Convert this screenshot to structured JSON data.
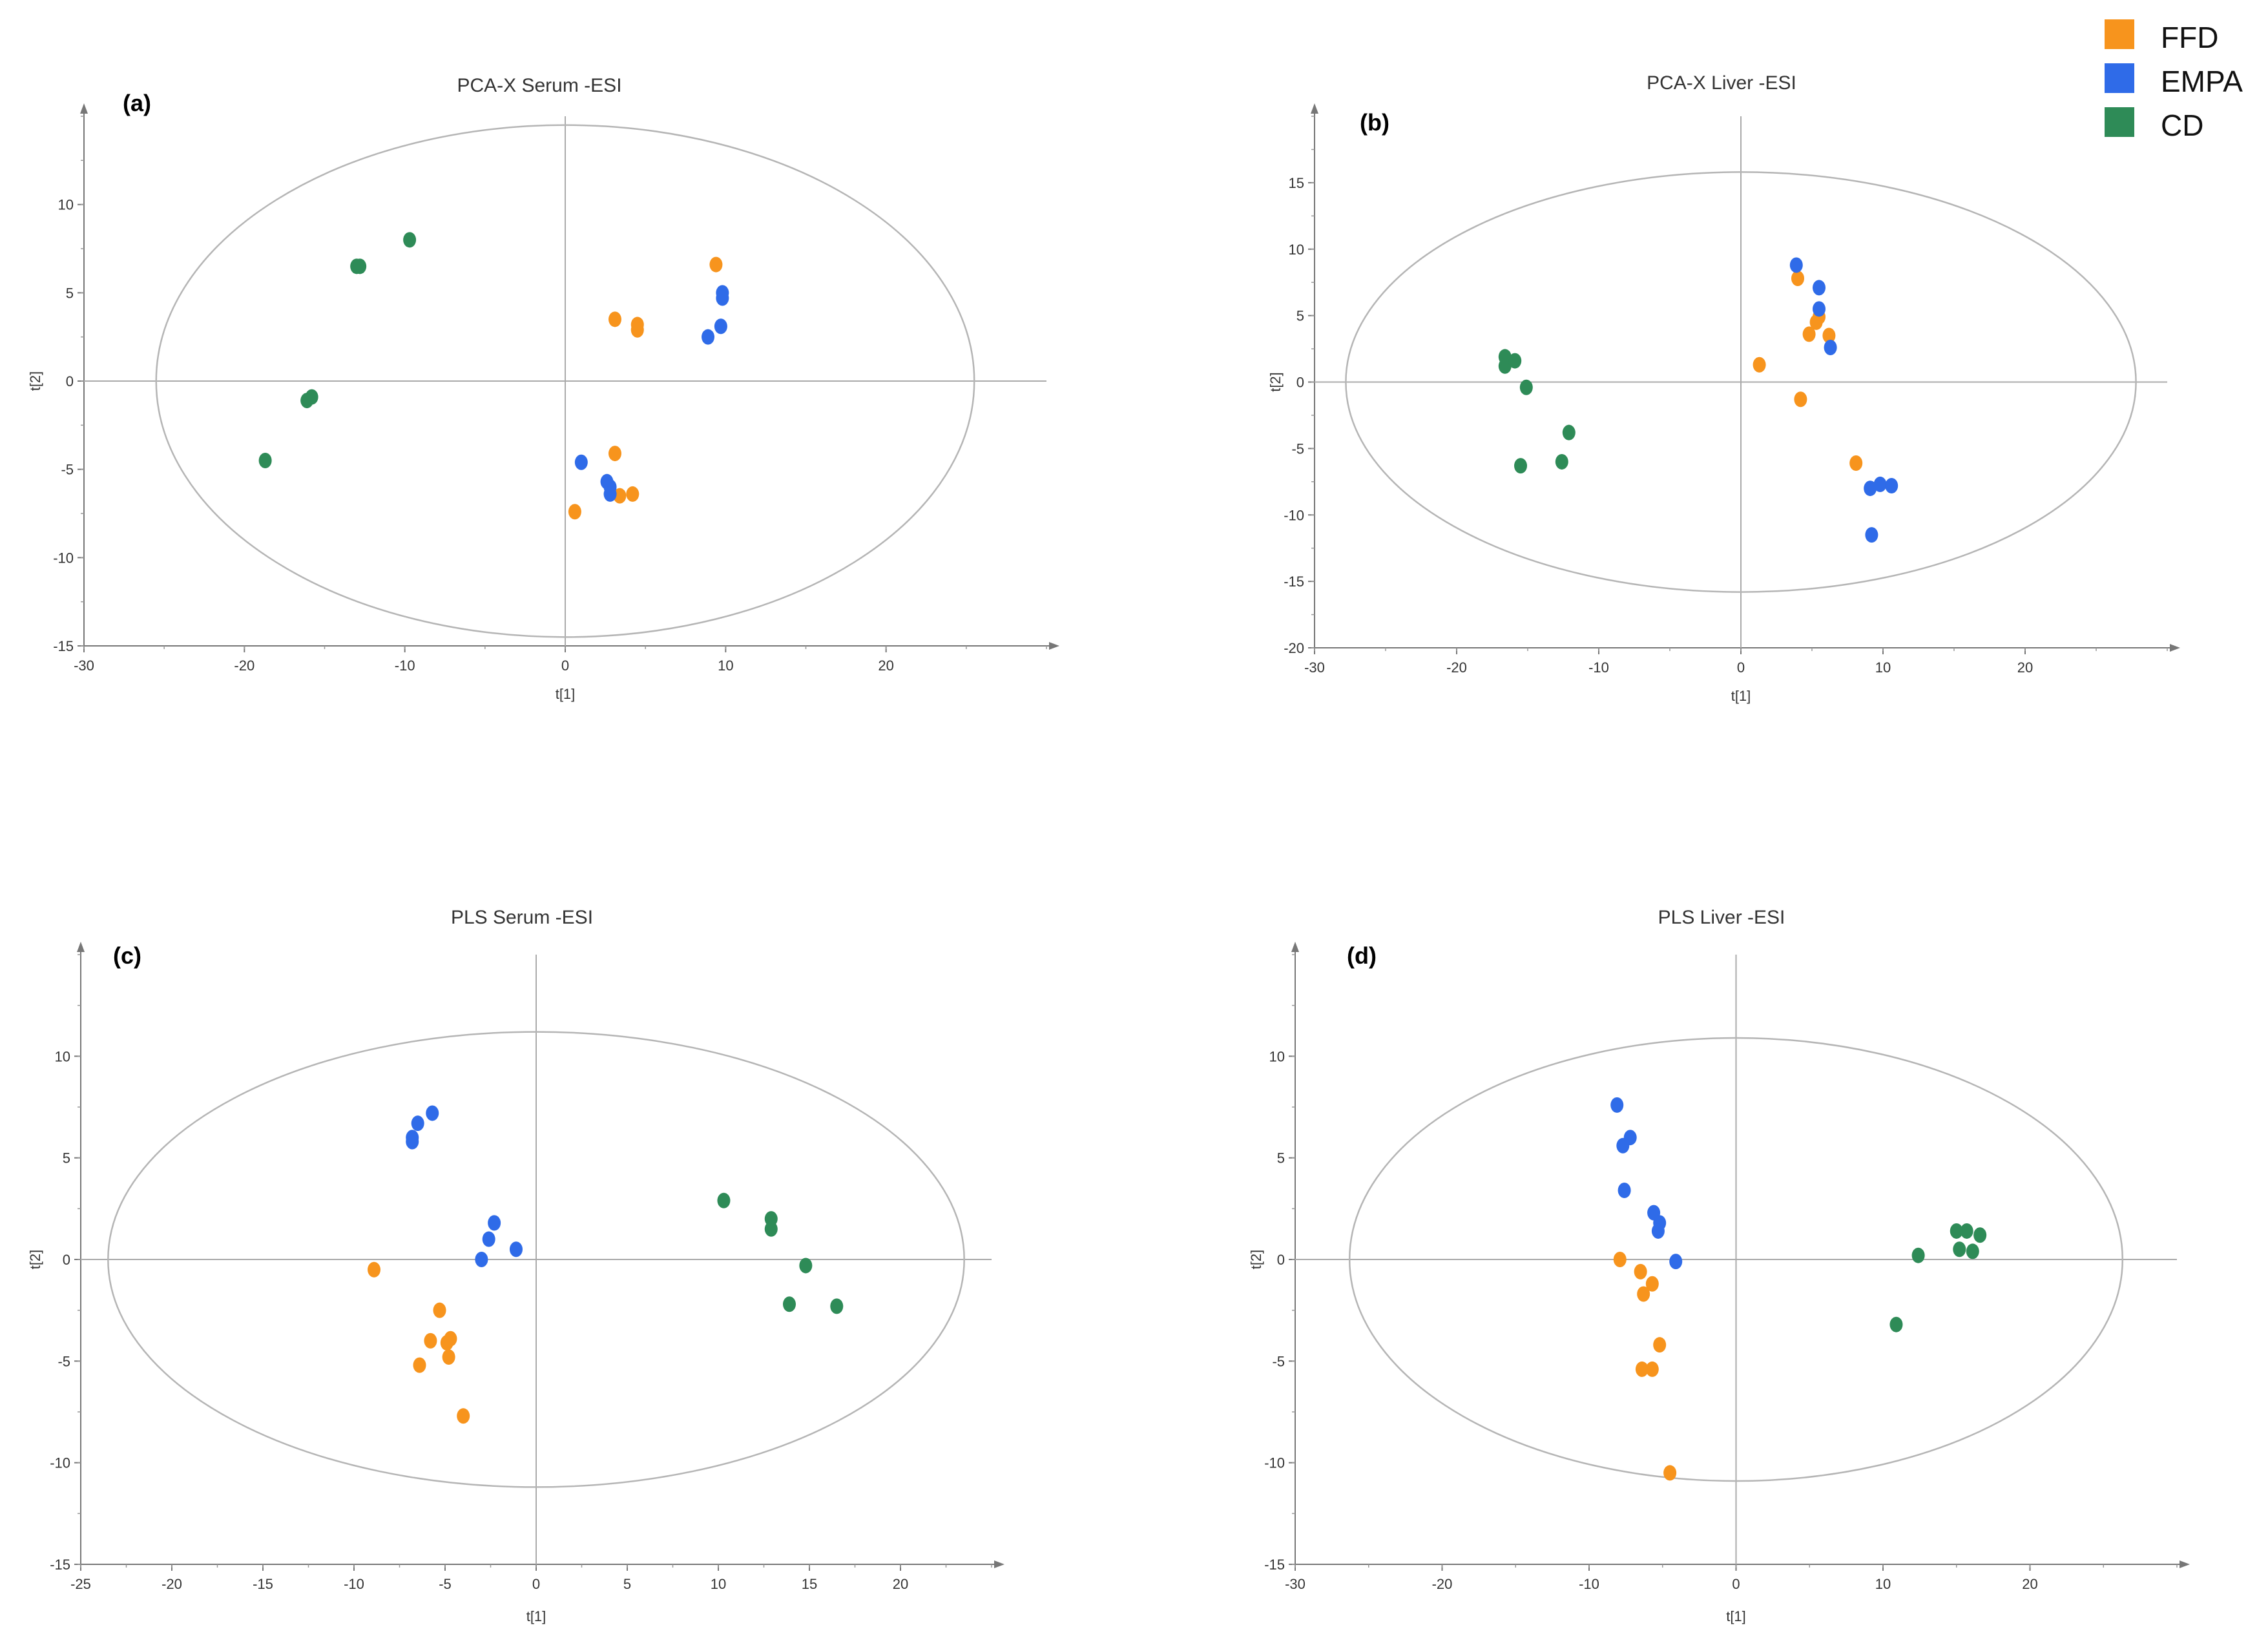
{
  "legend": {
    "items": [
      {
        "name": "FFD",
        "color": "#F7941D"
      },
      {
        "name": "EMPA",
        "color": "#2F6BE8"
      },
      {
        "name": "CD",
        "color": "#2E8B57"
      }
    ]
  },
  "chart_data": [
    {
      "type": "scatter",
      "panel_label": "(a)",
      "title": "PCA-X Serum -ESI",
      "xlabel": "t[1]",
      "ylabel": "t[2]",
      "xlim": [
        -30,
        30
      ],
      "ylim": [
        -15,
        15
      ],
      "xticks": [
        -30,
        -20,
        -10,
        0,
        10,
        20
      ],
      "yticks": [
        -15,
        -10,
        -5,
        0,
        5,
        10
      ],
      "ellipse": {
        "rx": 25.5,
        "ry": 14.5
      },
      "series": [
        {
          "name": "FFD",
          "points": [
            [
              9.4,
              6.6
            ],
            [
              3.1,
              3.5
            ],
            [
              4.5,
              3.2
            ],
            [
              4.5,
              2.9
            ],
            [
              3.1,
              -4.1
            ],
            [
              0.6,
              -7.4
            ],
            [
              3.4,
              -6.5
            ],
            [
              4.2,
              -6.4
            ]
          ]
        },
        {
          "name": "EMPA",
          "points": [
            [
              9.8,
              5.0
            ],
            [
              9.8,
              4.7
            ],
            [
              9.7,
              3.1
            ],
            [
              8.9,
              2.5
            ],
            [
              1.0,
              -4.6
            ],
            [
              2.6,
              -5.7
            ],
            [
              2.8,
              -6.0
            ],
            [
              2.8,
              -6.4
            ]
          ]
        },
        {
          "name": "CD",
          "points": [
            [
              -9.7,
              8.0
            ],
            [
              -13.0,
              6.5
            ],
            [
              -12.8,
              6.5
            ],
            [
              -15.8,
              -0.9
            ],
            [
              -16.1,
              -1.1
            ],
            [
              -18.7,
              -4.5
            ]
          ]
        }
      ]
    },
    {
      "type": "scatter",
      "panel_label": "(b)",
      "title": "PCA-X Liver -ESI",
      "xlabel": "t[1]",
      "ylabel": "t[2]",
      "xlim": [
        -30,
        30
      ],
      "ylim": [
        -20,
        20
      ],
      "xticks": [
        -30,
        -20,
        -10,
        0,
        10,
        20
      ],
      "yticks": [
        -20,
        -15,
        -10,
        -5,
        0,
        5,
        10,
        15
      ],
      "ellipse": {
        "rx": 27.8,
        "ry": 15.8
      },
      "series": [
        {
          "name": "FFD",
          "points": [
            [
              4.0,
              7.8
            ],
            [
              5.5,
              4.9
            ],
            [
              5.3,
              4.5
            ],
            [
              4.8,
              3.6
            ],
            [
              6.2,
              3.5
            ],
            [
              1.3,
              1.3
            ],
            [
              4.2,
              -1.3
            ],
            [
              8.1,
              -6.1
            ]
          ]
        },
        {
          "name": "EMPA",
          "points": [
            [
              3.9,
              8.8
            ],
            [
              5.5,
              7.1
            ],
            [
              5.5,
              5.5
            ],
            [
              6.3,
              2.6
            ],
            [
              9.8,
              -7.7
            ],
            [
              10.6,
              -7.8
            ],
            [
              9.1,
              -8.0
            ],
            [
              9.2,
              -11.5
            ]
          ]
        },
        {
          "name": "CD",
          "points": [
            [
              -16.6,
              1.9
            ],
            [
              -16.6,
              1.2
            ],
            [
              -15.9,
              1.6
            ],
            [
              -15.1,
              -0.4
            ],
            [
              -12.1,
              -3.8
            ],
            [
              -15.5,
              -6.3
            ],
            [
              -12.6,
              -6.0
            ]
          ]
        }
      ]
    },
    {
      "type": "scatter",
      "panel_label": "(c)",
      "title": "PLS Serum -ESI",
      "xlabel": "t[1]",
      "ylabel": "t[2]",
      "xlim": [
        -25,
        25
      ],
      "ylim": [
        -15,
        15
      ],
      "xticks": [
        -25,
        -20,
        -15,
        -10,
        -5,
        0,
        5,
        10,
        15,
        20
      ],
      "yticks": [
        -15,
        -10,
        -5,
        0,
        5,
        10
      ],
      "ellipse": {
        "rx": 23.5,
        "ry": 11.2
      },
      "series": [
        {
          "name": "FFD",
          "points": [
            [
              -8.9,
              -0.5
            ],
            [
              -5.3,
              -2.5
            ],
            [
              -5.8,
              -4.0
            ],
            [
              -4.9,
              -4.1
            ],
            [
              -4.7,
              -3.9
            ],
            [
              -4.8,
              -4.8
            ],
            [
              -6.4,
              -5.2
            ],
            [
              -4.0,
              -7.7
            ]
          ]
        },
        {
          "name": "EMPA",
          "points": [
            [
              -5.7,
              7.2
            ],
            [
              -6.5,
              6.7
            ],
            [
              -6.8,
              6.0
            ],
            [
              -6.8,
              5.8
            ],
            [
              -2.3,
              1.8
            ],
            [
              -2.6,
              1.0
            ],
            [
              -1.1,
              0.5
            ],
            [
              -3.0,
              0.0
            ]
          ]
        },
        {
          "name": "CD",
          "points": [
            [
              10.3,
              2.9
            ],
            [
              12.9,
              2.0
            ],
            [
              12.9,
              1.5
            ],
            [
              14.8,
              -0.3
            ],
            [
              13.9,
              -2.2
            ],
            [
              16.5,
              -2.3
            ]
          ]
        }
      ]
    },
    {
      "type": "scatter",
      "panel_label": "(d)",
      "title": "PLS Liver -ESI",
      "xlabel": "t[1]",
      "ylabel": "t[2]",
      "xlim": [
        -30,
        30
      ],
      "ylim": [
        -15,
        15
      ],
      "xticks": [
        -30,
        -20,
        -10,
        0,
        10,
        20
      ],
      "yticks": [
        -15,
        -10,
        -5,
        0,
        5,
        10
      ],
      "ellipse": {
        "rx": 26.3,
        "ry": 10.9
      },
      "series": [
        {
          "name": "FFD",
          "points": [
            [
              -7.9,
              0.0
            ],
            [
              -6.5,
              -0.6
            ],
            [
              -5.7,
              -1.2
            ],
            [
              -6.3,
              -1.7
            ],
            [
              -5.2,
              -4.2
            ],
            [
              -6.4,
              -5.4
            ],
            [
              -5.7,
              -5.4
            ],
            [
              -4.5,
              -10.5
            ]
          ]
        },
        {
          "name": "EMPA",
          "points": [
            [
              -8.1,
              7.6
            ],
            [
              -7.2,
              6.0
            ],
            [
              -7.7,
              5.6
            ],
            [
              -7.6,
              3.4
            ],
            [
              -5.6,
              2.3
            ],
            [
              -5.2,
              1.8
            ],
            [
              -5.3,
              1.4
            ],
            [
              -4.1,
              -0.1
            ]
          ]
        },
        {
          "name": "CD",
          "points": [
            [
              15.0,
              1.4
            ],
            [
              15.7,
              1.4
            ],
            [
              16.6,
              1.2
            ],
            [
              15.2,
              0.5
            ],
            [
              16.1,
              0.4
            ],
            [
              12.4,
              0.2
            ],
            [
              10.9,
              -3.2
            ]
          ]
        }
      ]
    }
  ]
}
